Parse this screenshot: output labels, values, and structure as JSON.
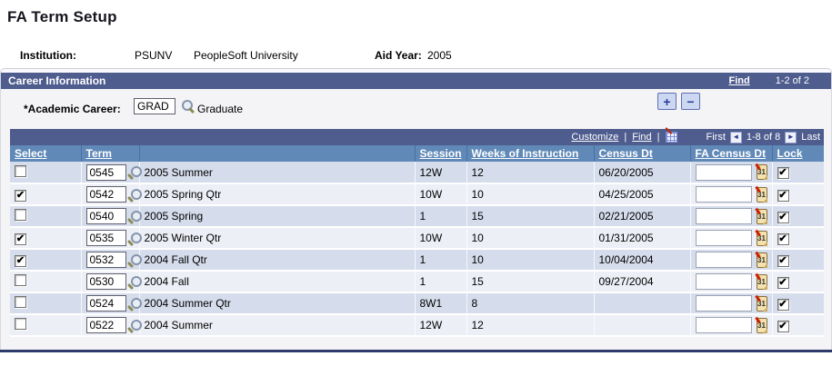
{
  "page": {
    "title": "FA Term Setup"
  },
  "info": {
    "institution_label": "Institution:",
    "institution_code": "PSUNV",
    "institution_name": "PeopleSoft University",
    "aid_year_label": "Aid Year:",
    "aid_year_value": "2005"
  },
  "career_section": {
    "title": "Career Information",
    "find_label": "Find",
    "range_label": "1-2 of 2",
    "academic_career_label": "*Academic Career:",
    "academic_career_value": "GRAD",
    "academic_career_desc": "Graduate",
    "add_row_label": "+",
    "delete_row_label": "−"
  },
  "grid": {
    "toolbar": {
      "customize_label": "Customize",
      "find_label": "Find",
      "separator": "|",
      "first_label": "First",
      "range_label": "1-8 of 8",
      "last_label": "Last",
      "prev_glyph": "◄",
      "next_glyph": "►"
    },
    "columns": [
      "Select",
      "Term",
      "",
      "Session",
      "Weeks of Instruction",
      "Census Dt",
      "FA Census Dt",
      "Lock"
    ],
    "rows": [
      {
        "selected": false,
        "term": "0545",
        "description": "2005 Summer",
        "session": "12W",
        "weeks": "12",
        "census_dt": "06/20/2005",
        "fa_census_dt": "",
        "lock": true
      },
      {
        "selected": true,
        "term": "0542",
        "description": "2005 Spring Qtr",
        "session": "10W",
        "weeks": "10",
        "census_dt": "04/25/2005",
        "fa_census_dt": "",
        "lock": true
      },
      {
        "selected": false,
        "term": "0540",
        "description": "2005 Spring",
        "session": "1",
        "weeks": "15",
        "census_dt": "02/21/2005",
        "fa_census_dt": "",
        "lock": true
      },
      {
        "selected": true,
        "term": "0535",
        "description": "2005 Winter Qtr",
        "session": "10W",
        "weeks": "10",
        "census_dt": "01/31/2005",
        "fa_census_dt": "",
        "lock": true
      },
      {
        "selected": true,
        "term": "0532",
        "description": "2004 Fall Qtr",
        "session": "1",
        "weeks": "10",
        "census_dt": "10/04/2004",
        "fa_census_dt": "",
        "lock": true
      },
      {
        "selected": false,
        "term": "0530",
        "description": "2004 Fall",
        "session": "1",
        "weeks": "15",
        "census_dt": "09/27/2004",
        "fa_census_dt": "",
        "lock": true
      },
      {
        "selected": false,
        "term": "0524",
        "description": "2004 Summer Qtr",
        "session": "8W1",
        "weeks": "8",
        "census_dt": "",
        "fa_census_dt": "",
        "lock": true
      },
      {
        "selected": false,
        "term": "0522",
        "description": "2004 Summer",
        "session": "12W",
        "weeks": "12",
        "census_dt": "",
        "fa_census_dt": "",
        "lock": true
      }
    ]
  },
  "icons": {
    "calendar_label": "31",
    "check_glyph": "✔"
  },
  "colors": {
    "section_bar": "#4e5c8e",
    "grid_header": "#6089b8",
    "row_odd": "#d5ddec",
    "row_even": "#edeff6",
    "container_bg": "#f4f4f7",
    "bottom_rule": "#2e3a6b"
  }
}
